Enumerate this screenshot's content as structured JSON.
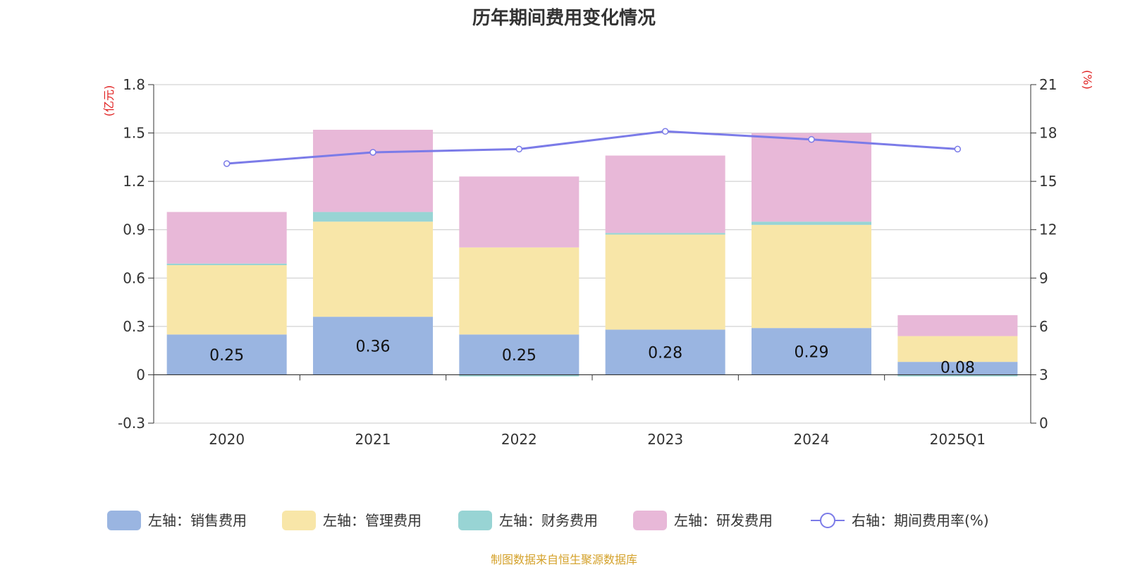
{
  "chart_data": {
    "type": "bar",
    "title": "历年期间费用变化情况",
    "categories": [
      "2020",
      "2021",
      "2022",
      "2023",
      "2024",
      "2025Q1"
    ],
    "series": [
      {
        "name": "左轴：销售费用",
        "axis": "left",
        "kind": "stacked-bar",
        "color": "#9ab5e1",
        "values": [
          0.25,
          0.36,
          0.25,
          0.28,
          0.29,
          0.08
        ]
      },
      {
        "name": "左轴：管理费用",
        "axis": "left",
        "kind": "stacked-bar",
        "color": "#f8e6a8",
        "values": [
          0.43,
          0.59,
          0.54,
          0.59,
          0.64,
          0.16
        ]
      },
      {
        "name": "左轴：财务费用",
        "axis": "left",
        "kind": "stacked-bar",
        "color": "#98d4d4",
        "values": [
          0.01,
          0.06,
          -0.01,
          0.01,
          0.02,
          -0.01
        ]
      },
      {
        "name": "左轴：研发费用",
        "axis": "left",
        "kind": "stacked-bar",
        "color": "#e8b8d8",
        "values": [
          0.32,
          0.51,
          0.44,
          0.48,
          0.55,
          0.13
        ]
      },
      {
        "name": "右轴：期间费用率(%)",
        "axis": "right",
        "kind": "line",
        "color": "#7b7be8",
        "values": [
          16.1,
          16.8,
          17.0,
          18.1,
          17.6,
          17.0
        ]
      }
    ],
    "data_labels": [
      "0.25",
      "0.36",
      "0.25",
      "0.28",
      "0.29",
      "0.08"
    ],
    "left_axis": {
      "unit": "(亿元)",
      "ylim": [
        -0.3,
        1.8
      ],
      "ticks": [
        "-0.3",
        "0",
        "0.3",
        "0.6",
        "0.9",
        "1.2",
        "1.5",
        "1.8"
      ]
    },
    "right_axis": {
      "unit": "(%)",
      "ylim": [
        0,
        21
      ],
      "ticks": [
        "0",
        "3",
        "6",
        "9",
        "12",
        "15",
        "18",
        "21"
      ]
    },
    "grid": true,
    "legend_position": "bottom"
  },
  "source_note": "制图数据来自恒生聚源数据库",
  "colors": {
    "axis_unit": "#e02020",
    "grid": "#c8c8c8",
    "text": "#333333",
    "source": "#d4a12a"
  }
}
